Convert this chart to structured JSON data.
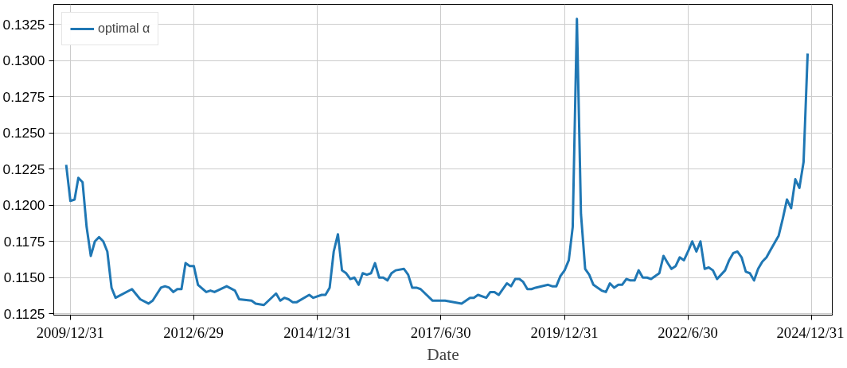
{
  "chart_data": {
    "type": "line",
    "xlabel": "Date",
    "x": [
      "2009-12",
      "2010-01",
      "2010-02",
      "2010-03",
      "2010-04",
      "2010-05",
      "2010-06",
      "2010-07",
      "2010-08",
      "2010-09",
      "2010-10",
      "2010-11",
      "2010-12",
      "2011-04",
      "2011-06",
      "2011-08",
      "2011-09",
      "2011-11",
      "2011-12",
      "2012-01",
      "2012-02",
      "2012-03",
      "2012-04",
      "2012-05",
      "2012-06",
      "2012-07",
      "2012-08",
      "2012-10",
      "2012-11",
      "2012-12",
      "2013-03",
      "2013-05",
      "2013-06",
      "2013-09",
      "2013-10",
      "2013-12",
      "2014-03",
      "2014-04",
      "2014-05",
      "2014-06",
      "2014-07",
      "2014-08",
      "2014-11",
      "2014-12",
      "2015-02",
      "2015-03",
      "2015-04",
      "2015-05",
      "2015-06",
      "2015-07",
      "2015-08",
      "2015-09",
      "2015-10",
      "2015-11",
      "2015-12",
      "2016-01",
      "2016-02",
      "2016-03",
      "2016-04",
      "2016-05",
      "2016-06",
      "2016-07",
      "2016-08",
      "2016-10",
      "2016-11",
      "2016-12",
      "2017-01",
      "2017-02",
      "2017-05",
      "2017-06",
      "2017-08",
      "2017-12",
      "2018-02",
      "2018-03",
      "2018-04",
      "2018-06",
      "2018-07",
      "2018-08",
      "2018-09",
      "2018-11",
      "2018-12",
      "2019-01",
      "2019-02",
      "2019-03",
      "2019-04",
      "2019-05",
      "2019-06",
      "2019-09",
      "2019-10",
      "2019-11",
      "2019-12",
      "2020-01",
      "2020-02",
      "2020-03",
      "2020-04",
      "2020-05",
      "2020-06",
      "2020-07",
      "2020-08",
      "2020-09",
      "2020-10",
      "2020-11",
      "2020-12",
      "2021-01",
      "2021-02",
      "2021-03",
      "2021-04",
      "2021-05",
      "2021-06",
      "2021-07",
      "2021-08",
      "2021-09",
      "2021-10",
      "2021-12",
      "2022-01",
      "2022-02",
      "2022-03",
      "2022-04",
      "2022-05",
      "2022-06",
      "2022-07",
      "2022-08",
      "2022-09",
      "2022-10",
      "2022-11",
      "2022-12",
      "2023-01",
      "2023-02",
      "2023-04",
      "2023-05",
      "2023-06",
      "2023-07",
      "2023-08",
      "2023-09",
      "2023-10",
      "2023-11",
      "2023-12",
      "2024-01",
      "2024-02",
      "2024-03",
      "2024-05",
      "2024-06",
      "2024-07",
      "2024-08",
      "2024-09",
      "2024-10",
      "2024-11",
      "2024-12"
    ],
    "series": [
      {
        "name": "optimal α",
        "color": "#1f77b4",
        "values": [
          0.1228,
          0.1203,
          0.1204,
          0.1219,
          0.1216,
          0.1185,
          0.1165,
          0.1175,
          0.1178,
          0.1175,
          0.1168,
          0.1143,
          0.1136,
          0.1142,
          0.1135,
          0.1132,
          0.1134,
          0.1143,
          0.1144,
          0.1143,
          0.114,
          0.1142,
          0.1142,
          0.116,
          0.1158,
          0.1158,
          0.1145,
          0.114,
          0.1141,
          0.114,
          0.1144,
          0.1141,
          0.1135,
          0.1134,
          0.1132,
          0.1131,
          0.1139,
          0.1134,
          0.1136,
          0.1135,
          0.1133,
          0.1133,
          0.1138,
          0.1136,
          0.1138,
          0.1138,
          0.1143,
          0.1168,
          0.118,
          0.1155,
          0.1153,
          0.1149,
          0.115,
          0.1145,
          0.1153,
          0.1152,
          0.1153,
          0.116,
          0.115,
          0.115,
          0.1148,
          0.1153,
          0.1155,
          0.1156,
          0.1152,
          0.1143,
          0.1143,
          0.1142,
          0.1134,
          0.1134,
          0.1134,
          0.1132,
          0.1136,
          0.1136,
          0.1138,
          0.1136,
          0.114,
          0.114,
          0.1138,
          0.1146,
          0.1144,
          0.1149,
          0.1149,
          0.1147,
          0.1142,
          0.1142,
          0.1143,
          0.1145,
          0.1144,
          0.1144,
          0.1151,
          0.1155,
          0.1162,
          0.1185,
          0.1329,
          0.1194,
          0.1156,
          0.1152,
          0.1145,
          0.1143,
          0.1141,
          0.114,
          0.1146,
          0.1143,
          0.1145,
          0.1145,
          0.1149,
          0.1148,
          0.1148,
          0.1155,
          0.115,
          0.115,
          0.1149,
          0.1153,
          0.1165,
          0.116,
          0.1156,
          0.1158,
          0.1164,
          0.1162,
          0.1168,
          0.1175,
          0.1168,
          0.1175,
          0.1156,
          0.1157,
          0.1155,
          0.1149,
          0.1155,
          0.1162,
          0.1167,
          0.1168,
          0.1164,
          0.1154,
          0.1153,
          0.1148,
          0.1156,
          0.1161,
          0.1164,
          0.1169,
          0.1179,
          0.1191,
          0.1204,
          0.1198,
          0.1218,
          0.1212,
          0.123,
          0.1305
        ]
      }
    ],
    "xlim": [
      "2009-08-31",
      "2025-06-01"
    ],
    "xticks": [
      {
        "value": "2009-12-31",
        "label": "2009/12/31"
      },
      {
        "value": "2012-06-29",
        "label": "2012/6/29"
      },
      {
        "value": "2014-12-31",
        "label": "2014/12/31"
      },
      {
        "value": "2017-06-30",
        "label": "2017/6/30"
      },
      {
        "value": "2019-12-31",
        "label": "2019/12/31"
      },
      {
        "value": "2022-06-30",
        "label": "2022/6/30"
      },
      {
        "value": "2024-12-31",
        "label": "2024/12/31"
      }
    ],
    "ylim": [
      0.1124,
      0.1339
    ],
    "yticks": [
      0.1125,
      {
        "value": 0.115,
        "label": "0.1150"
      },
      0.1175,
      {
        "value": 0.12,
        "label": "0.1200"
      },
      0.1225,
      {
        "value": 0.125,
        "label": "0.1250"
      },
      0.1275,
      {
        "value": 0.13,
        "label": "0.1300"
      },
      0.1325
    ],
    "grid": true,
    "legend": "top left",
    "marker": "none",
    "line_style": "solid"
  }
}
